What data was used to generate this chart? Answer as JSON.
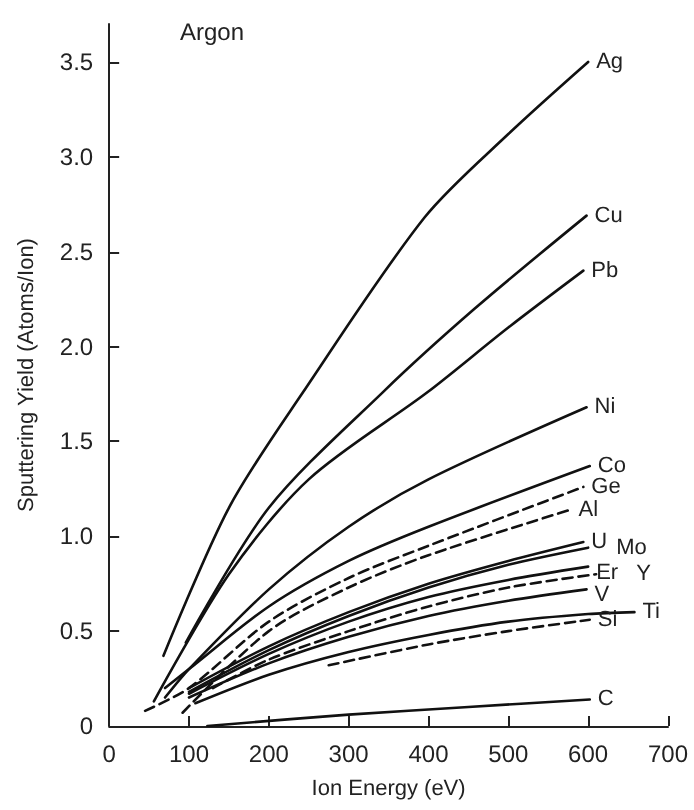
{
  "chart_data": {
    "type": "line",
    "xlabel": "Ion Energy (eV)",
    "ylabel": "Sputtering Yield (Atoms/Ion)",
    "annotations": [
      "Argon"
    ],
    "xlim": [
      0,
      700
    ],
    "xticks": [
      0,
      100,
      200,
      300,
      400,
      500,
      600,
      700
    ],
    "ylim": [
      0,
      3.7
    ],
    "yticks": [
      0,
      {
        "value": 0.5,
        "label": "0.5"
      },
      {
        "value": 1,
        "label": "1.0"
      },
      {
        "value": 1.5,
        "label": "1.5"
      },
      {
        "value": 2,
        "label": "2.0"
      },
      {
        "value": 2.5,
        "label": "2.5"
      },
      {
        "value": 3,
        "label": "3.0"
      },
      {
        "value": 3.5,
        "label": "3.5"
      }
    ],
    "grid": false,
    "legend": false,
    "marker": "none",
    "series": [
      {
        "name": "Ag",
        "color": "#111111",
        "line_style": "solid",
        "x": [
          68,
          150,
          243,
          395,
          500,
          600
        ],
        "values": [
          0.37,
          1.15,
          1.76,
          2.68,
          3.12,
          3.5
        ]
      },
      {
        "name": "Cu",
        "color": "#111111",
        "line_style": "solid",
        "x": [
          96,
          200,
          343,
          458,
          598
        ],
        "values": [
          0.44,
          1.15,
          1.76,
          2.2,
          2.69
        ]
      },
      {
        "name": "Pb",
        "color": "#111111",
        "line_style": "solid",
        "x": [
          56,
          150,
          250,
          399,
          500,
          594
        ],
        "values": [
          0.13,
          0.8,
          1.3,
          1.76,
          2.1,
          2.4
        ]
      },
      {
        "name": "Ni",
        "color": "#111111",
        "line_style": "solid",
        "x": [
          70,
          100,
          200,
          300,
          400,
          598
        ],
        "values": [
          0.15,
          0.3,
          0.72,
          1.05,
          1.3,
          1.68
        ]
      },
      {
        "name": "Co",
        "color": "#111111",
        "line_style": "solid",
        "x": [
          70,
          100,
          200,
          300,
          400,
          602
        ],
        "values": [
          0.2,
          0.3,
          0.63,
          0.87,
          1.05,
          1.37
        ]
      },
      {
        "name": "Ge",
        "color": "#111111",
        "line_style": "dashed",
        "x": [
          45,
          100,
          200,
          300,
          400,
          594
        ],
        "values": [
          0.08,
          0.2,
          0.55,
          0.78,
          0.95,
          1.26
        ]
      },
      {
        "name": "Al",
        "color": "#111111",
        "line_style": "dashed",
        "x": [
          92,
          200,
          300,
          400,
          578
        ],
        "values": [
          0.07,
          0.5,
          0.73,
          0.9,
          1.14
        ]
      },
      {
        "name": "U",
        "color": "#111111",
        "line_style": "solid",
        "x": [
          100,
          200,
          300,
          400,
          500,
          594
        ],
        "values": [
          0.2,
          0.42,
          0.6,
          0.75,
          0.87,
          0.97
        ]
      },
      {
        "name": "Mo",
        "color": "#111111",
        "line_style": "solid",
        "x": [
          100,
          200,
          300,
          400,
          500,
          600
        ],
        "values": [
          0.18,
          0.4,
          0.58,
          0.73,
          0.85,
          0.94
        ]
      },
      {
        "name": "Er",
        "color": "#111111",
        "line_style": "solid",
        "x": [
          100,
          200,
          300,
          400,
          500,
          600
        ],
        "values": [
          0.17,
          0.38,
          0.55,
          0.68,
          0.77,
          0.84
        ]
      },
      {
        "name": "Y",
        "color": "#111111",
        "line_style": "dashed",
        "x": [
          130,
          200,
          300,
          400,
          500,
          610
        ],
        "values": [
          0.2,
          0.35,
          0.5,
          0.63,
          0.73,
          0.8
        ]
      },
      {
        "name": "V",
        "color": "#111111",
        "line_style": "solid",
        "x": [
          100,
          200,
          300,
          400,
          500,
          598
        ],
        "values": [
          0.15,
          0.33,
          0.47,
          0.58,
          0.66,
          0.72
        ]
      },
      {
        "name": "Ti",
        "color": "#111111",
        "line_style": "solid",
        "x": [
          108,
          200,
          300,
          400,
          500,
          600,
          658
        ],
        "values": [
          0.12,
          0.27,
          0.39,
          0.48,
          0.55,
          0.59,
          0.6
        ]
      },
      {
        "name": "Si",
        "color": "#111111",
        "line_style": "dashed",
        "x": [
          275,
          400,
          500,
          602
        ],
        "values": [
          0.32,
          0.43,
          0.5,
          0.56
        ]
      },
      {
        "name": "C",
        "color": "#111111",
        "line_style": "solid",
        "x": [
          123,
          300,
          450,
          602
        ],
        "values": [
          0,
          0.06,
          0.1,
          0.14
        ]
      }
    ]
  }
}
